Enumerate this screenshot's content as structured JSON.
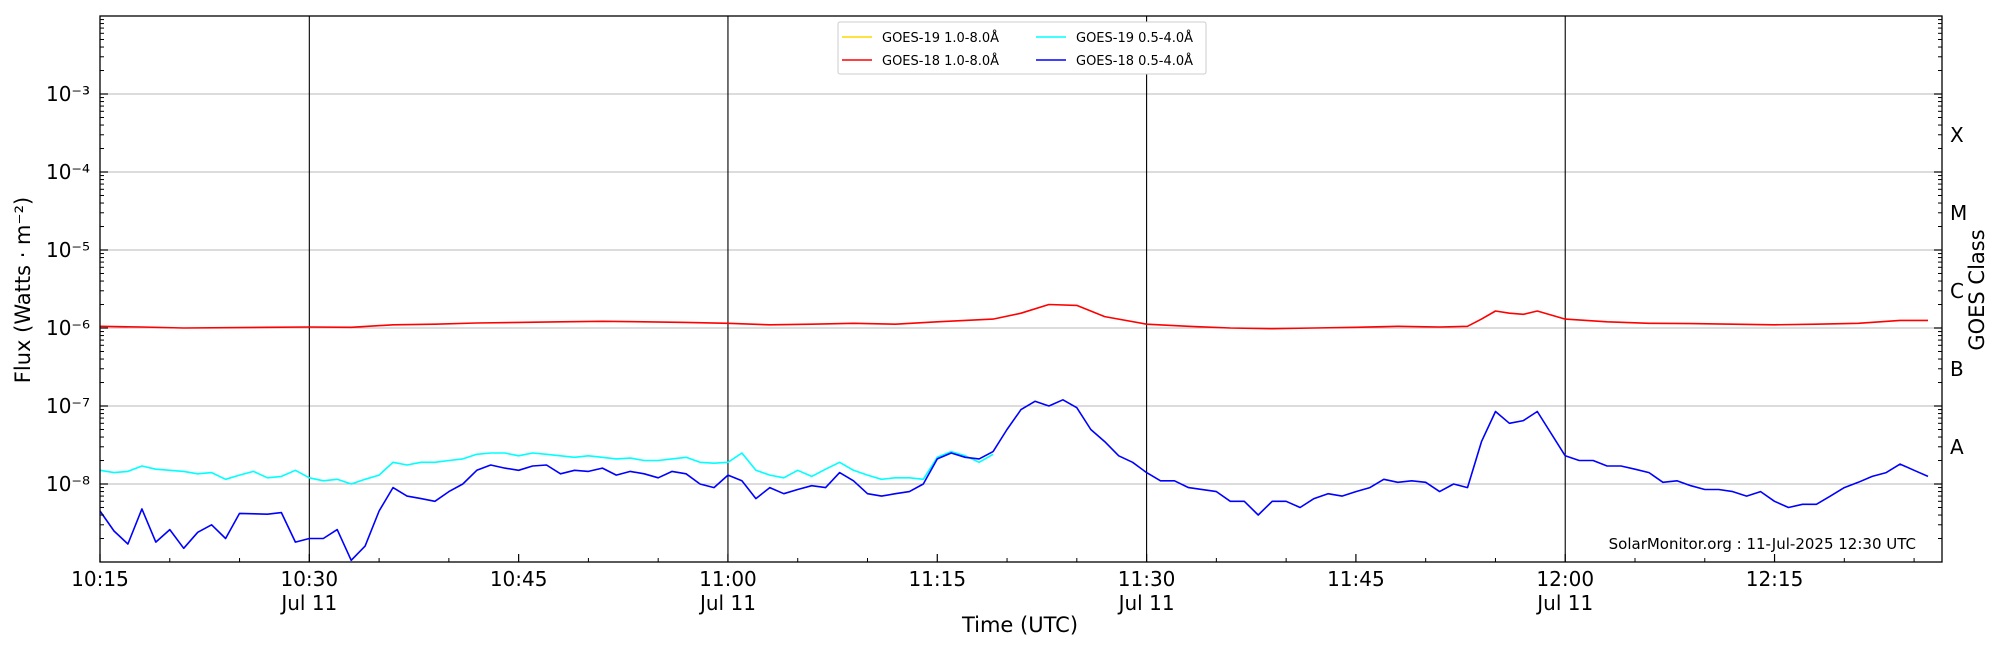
{
  "chart_data": {
    "type": "line",
    "title": "",
    "xlabel": "Time (UTC)",
    "ylabel": "Flux (Watts · m⁻²)",
    "y2label": "GOES Class",
    "yscale": "log",
    "ylim": [
      1e-09,
      0.01
    ],
    "xlim": [
      "10:15",
      "12:27"
    ],
    "x_ticks": [
      {
        "t": "10:15",
        "label": "10:15",
        "sub": ""
      },
      {
        "t": "10:30",
        "label": "10:30",
        "sub": "Jul 11"
      },
      {
        "t": "10:45",
        "label": "10:45",
        "sub": ""
      },
      {
        "t": "11:00",
        "label": "11:00",
        "sub": "Jul 11"
      },
      {
        "t": "11:15",
        "label": "11:15",
        "sub": ""
      },
      {
        "t": "11:30",
        "label": "11:30",
        "sub": "Jul 11"
      },
      {
        "t": "11:45",
        "label": "11:45",
        "sub": ""
      },
      {
        "t": "12:00",
        "label": "12:00",
        "sub": "Jul 11"
      },
      {
        "t": "12:15",
        "label": "12:15",
        "sub": ""
      }
    ],
    "y_ticks": [
      {
        "value": 1e-08,
        "label": "10⁻⁸"
      },
      {
        "value": 1e-07,
        "label": "10⁻⁷"
      },
      {
        "value": 1e-06,
        "label": "10⁻⁶"
      },
      {
        "value": 1e-05,
        "label": "10⁻⁵"
      },
      {
        "value": 0.0001,
        "label": "10⁻⁴"
      },
      {
        "value": 0.001,
        "label": "10⁻³"
      }
    ],
    "goes_classes": [
      {
        "label": "A",
        "value": 3e-08
      },
      {
        "label": "B",
        "value": 3e-07
      },
      {
        "label": "C",
        "value": 3e-06
      },
      {
        "label": "M",
        "value": 3e-05
      },
      {
        "label": "X",
        "value": 0.0003
      }
    ],
    "grid": true,
    "vertical_markers": [
      "10:30",
      "11:00",
      "11:30",
      "12:00"
    ],
    "legend": {
      "position": "top-center",
      "entries": [
        {
          "name": "GOES-19 1.0-8.0Å",
          "color": "#ffd700"
        },
        {
          "name": "GOES-19 0.5-4.0Å",
          "color": "#00ffff"
        },
        {
          "name": "GOES-18 1.0-8.0Å",
          "color": "#ff0000"
        },
        {
          "name": "GOES-18 0.5-4.0Å",
          "color": "#0000ff"
        }
      ]
    },
    "credit": "SolarMonitor.org : 11-Jul-2025 12:30 UTC",
    "series": [
      {
        "name": "GOES-18 1.0-8.0Å",
        "color": "#ff0000",
        "x": [
          "10:15",
          "10:18",
          "10:21",
          "10:24",
          "10:27",
          "10:30",
          "10:33",
          "10:36",
          "10:39",
          "10:42",
          "10:45",
          "10:48",
          "10:51",
          "10:54",
          "10:57",
          "11:00",
          "11:03",
          "11:06",
          "11:09",
          "11:12",
          "11:15",
          "11:17",
          "11:19",
          "11:21",
          "11:23",
          "11:25",
          "11:27",
          "11:30",
          "11:33",
          "11:36",
          "11:39",
          "11:42",
          "11:45",
          "11:48",
          "11:51",
          "11:53",
          "11:54",
          "11:55",
          "11:56",
          "11:57",
          "11:58",
          "12:00",
          "12:03",
          "12:06",
          "12:09",
          "12:12",
          "12:15",
          "12:18",
          "12:21",
          "12:24",
          "12:26"
        ],
        "values": [
          1.05e-06,
          1.03e-06,
          1e-06,
          1.01e-06,
          1.02e-06,
          1.03e-06,
          1.02e-06,
          1.1e-06,
          1.12e-06,
          1.16e-06,
          1.18e-06,
          1.2e-06,
          1.22e-06,
          1.2e-06,
          1.18e-06,
          1.15e-06,
          1.1e-06,
          1.12e-06,
          1.15e-06,
          1.12e-06,
          1.2e-06,
          1.25e-06,
          1.3e-06,
          1.55e-06,
          2e-06,
          1.95e-06,
          1.4e-06,
          1.12e-06,
          1.05e-06,
          1e-06,
          9.8e-07,
          1e-06,
          1.02e-06,
          1.05e-06,
          1.03e-06,
          1.05e-06,
          1.3e-06,
          1.65e-06,
          1.55e-06,
          1.5e-06,
          1.65e-06,
          1.3e-06,
          1.2e-06,
          1.15e-06,
          1.14e-06,
          1.12e-06,
          1.1e-06,
          1.12e-06,
          1.15e-06,
          1.25e-06,
          1.25e-06
        ]
      },
      {
        "name": "GOES-19 0.5-4.0Å",
        "color": "#00ffff",
        "x": [
          "10:15",
          "10:16",
          "10:17",
          "10:18",
          "10:19",
          "10:20",
          "10:21",
          "10:22",
          "10:23",
          "10:24",
          "10:25",
          "10:26",
          "10:27",
          "10:28",
          "10:29",
          "10:30",
          "10:31",
          "10:32",
          "10:33",
          "10:34",
          "10:35",
          "10:36",
          "10:37",
          "10:38",
          "10:39",
          "10:40",
          "10:41",
          "10:42",
          "10:43",
          "10:44",
          "10:45",
          "10:46",
          "10:47",
          "10:48",
          "10:49",
          "10:50",
          "10:51",
          "10:52",
          "10:53",
          "10:54",
          "10:55",
          "10:56",
          "10:57",
          "10:58",
          "10:59",
          "11:00",
          "11:01",
          "11:02",
          "11:03",
          "11:04",
          "11:05",
          "11:06",
          "11:07",
          "11:08",
          "11:09",
          "11:10",
          "11:11",
          "11:12",
          "11:13",
          "11:14",
          "11:15",
          "11:16",
          "11:17",
          "11:18",
          "11:19"
        ],
        "values": [
          1.5e-08,
          1.4e-08,
          1.45e-08,
          1.7e-08,
          1.55e-08,
          1.5e-08,
          1.45e-08,
          1.35e-08,
          1.4e-08,
          1.15e-08,
          1.3e-08,
          1.45e-08,
          1.2e-08,
          1.25e-08,
          1.5e-08,
          1.2e-08,
          1.1e-08,
          1.15e-08,
          1e-08,
          1.15e-08,
          1.3e-08,
          1.9e-08,
          1.75e-08,
          1.9e-08,
          1.9e-08,
          2e-08,
          2.1e-08,
          2.4e-08,
          2.5e-08,
          2.5e-08,
          2.3e-08,
          2.5e-08,
          2.4e-08,
          2.3e-08,
          2.2e-08,
          2.3e-08,
          2.2e-08,
          2.1e-08,
          2.15e-08,
          2e-08,
          2e-08,
          2.1e-08,
          2.2e-08,
          1.9e-08,
          1.85e-08,
          1.9e-08,
          2.5e-08,
          1.5e-08,
          1.3e-08,
          1.2e-08,
          1.5e-08,
          1.25e-08,
          1.55e-08,
          1.9e-08,
          1.5e-08,
          1.3e-08,
          1.15e-08,
          1.2e-08,
          1.2e-08,
          1.15e-08,
          2.2e-08,
          2.6e-08,
          2.3e-08,
          1.9e-08,
          2.4e-08
        ]
      },
      {
        "name": "GOES-18 0.5-4.0Å",
        "color": "#0000ff",
        "x": [
          "10:15",
          "10:16",
          "10:17",
          "10:18",
          "10:19",
          "10:20",
          "10:21",
          "10:22",
          "10:23",
          "10:24",
          "10:25",
          "10:27",
          "10:28",
          "10:29",
          "10:30",
          "10:31",
          "10:32",
          "10:33",
          "10:34",
          "10:35",
          "10:36",
          "10:37",
          "10:38",
          "10:39",
          "10:40",
          "10:41",
          "10:42",
          "10:43",
          "10:44",
          "10:45",
          "10:46",
          "10:47",
          "10:48",
          "10:49",
          "10:50",
          "10:51",
          "10:52",
          "10:53",
          "10:54",
          "10:55",
          "10:56",
          "10:57",
          "10:58",
          "10:59",
          "11:00",
          "11:01",
          "11:02",
          "11:03",
          "11:04",
          "11:05",
          "11:06",
          "11:07",
          "11:08",
          "11:09",
          "11:10",
          "11:11",
          "11:12",
          "11:13",
          "11:14",
          "11:15",
          "11:16",
          "11:17",
          "11:18",
          "11:19",
          "11:20",
          "11:21",
          "11:22",
          "11:23",
          "11:24",
          "11:25",
          "11:26",
          "11:27",
          "11:28",
          "11:29",
          "11:30",
          "11:31",
          "11:32",
          "11:33",
          "11:35",
          "11:36",
          "11:37",
          "11:38",
          "11:39",
          "11:40",
          "11:41",
          "11:42",
          "11:43",
          "11:44",
          "11:45",
          "11:46",
          "11:47",
          "11:48",
          "11:49",
          "11:50",
          "11:51",
          "11:52",
          "11:53",
          "11:54",
          "11:55",
          "11:56",
          "11:57",
          "11:58",
          "12:00",
          "12:01",
          "12:02",
          "12:03",
          "12:04",
          "12:05",
          "12:06",
          "12:07",
          "12:08",
          "12:09",
          "12:10",
          "12:11",
          "12:12",
          "12:13",
          "12:14",
          "12:15",
          "12:16",
          "12:17",
          "12:18",
          "12:19",
          "12:20",
          "12:21",
          "12:22",
          "12:23",
          "12:24",
          "12:25",
          "12:26"
        ],
        "values": [
          4.5e-09,
          2.5e-09,
          1.7e-09,
          4.8e-09,
          1.8e-09,
          2.6e-09,
          1.5e-09,
          2.4e-09,
          3e-09,
          2e-09,
          4.2e-09,
          4.1e-09,
          4.3e-09,
          1.8e-09,
          2e-09,
          2e-09,
          2.6e-09,
          1.05e-09,
          1.6e-09,
          4.5e-09,
          9e-09,
          7e-09,
          6.5e-09,
          6e-09,
          8e-09,
          1e-08,
          1.5e-08,
          1.75e-08,
          1.6e-08,
          1.5e-08,
          1.7e-08,
          1.75e-08,
          1.35e-08,
          1.5e-08,
          1.45e-08,
          1.6e-08,
          1.3e-08,
          1.45e-08,
          1.35e-08,
          1.2e-08,
          1.45e-08,
          1.35e-08,
          1e-08,
          9e-09,
          1.3e-08,
          1.1e-08,
          6.5e-09,
          9e-09,
          7.5e-09,
          8.5e-09,
          9.5e-09,
          9e-09,
          1.4e-08,
          1.1e-08,
          7.5e-09,
          7e-09,
          7.5e-09,
          8e-09,
          1e-08,
          2.1e-08,
          2.5e-08,
          2.2e-08,
          2.1e-08,
          2.6e-08,
          5e-08,
          9e-08,
          1.15e-07,
          1e-07,
          1.2e-07,
          9.5e-08,
          5e-08,
          3.5e-08,
          2.3e-08,
          1.9e-08,
          1.4e-08,
          1.1e-08,
          1.1e-08,
          9e-09,
          8e-09,
          6e-09,
          6e-09,
          4e-09,
          6e-09,
          6e-09,
          5e-09,
          6.5e-09,
          7.5e-09,
          7e-09,
          8e-09,
          9e-09,
          1.15e-08,
          1.05e-08,
          1.1e-08,
          1.05e-08,
          8e-09,
          1e-08,
          9e-09,
          3.5e-08,
          8.5e-08,
          6e-08,
          6.5e-08,
          8.5e-08,
          2.3e-08,
          2e-08,
          2e-08,
          1.7e-08,
          1.7e-08,
          1.55e-08,
          1.4e-08,
          1.05e-08,
          1.1e-08,
          9.5e-09,
          8.5e-09,
          8.5e-09,
          8e-09,
          7e-09,
          8e-09,
          6e-09,
          5e-09,
          5.5e-09,
          5.5e-09,
          7e-09,
          9e-09,
          1.05e-08,
          1.25e-08,
          1.4e-08,
          1.8e-08,
          1.5e-08,
          1.25e-08
        ]
      }
    ]
  }
}
